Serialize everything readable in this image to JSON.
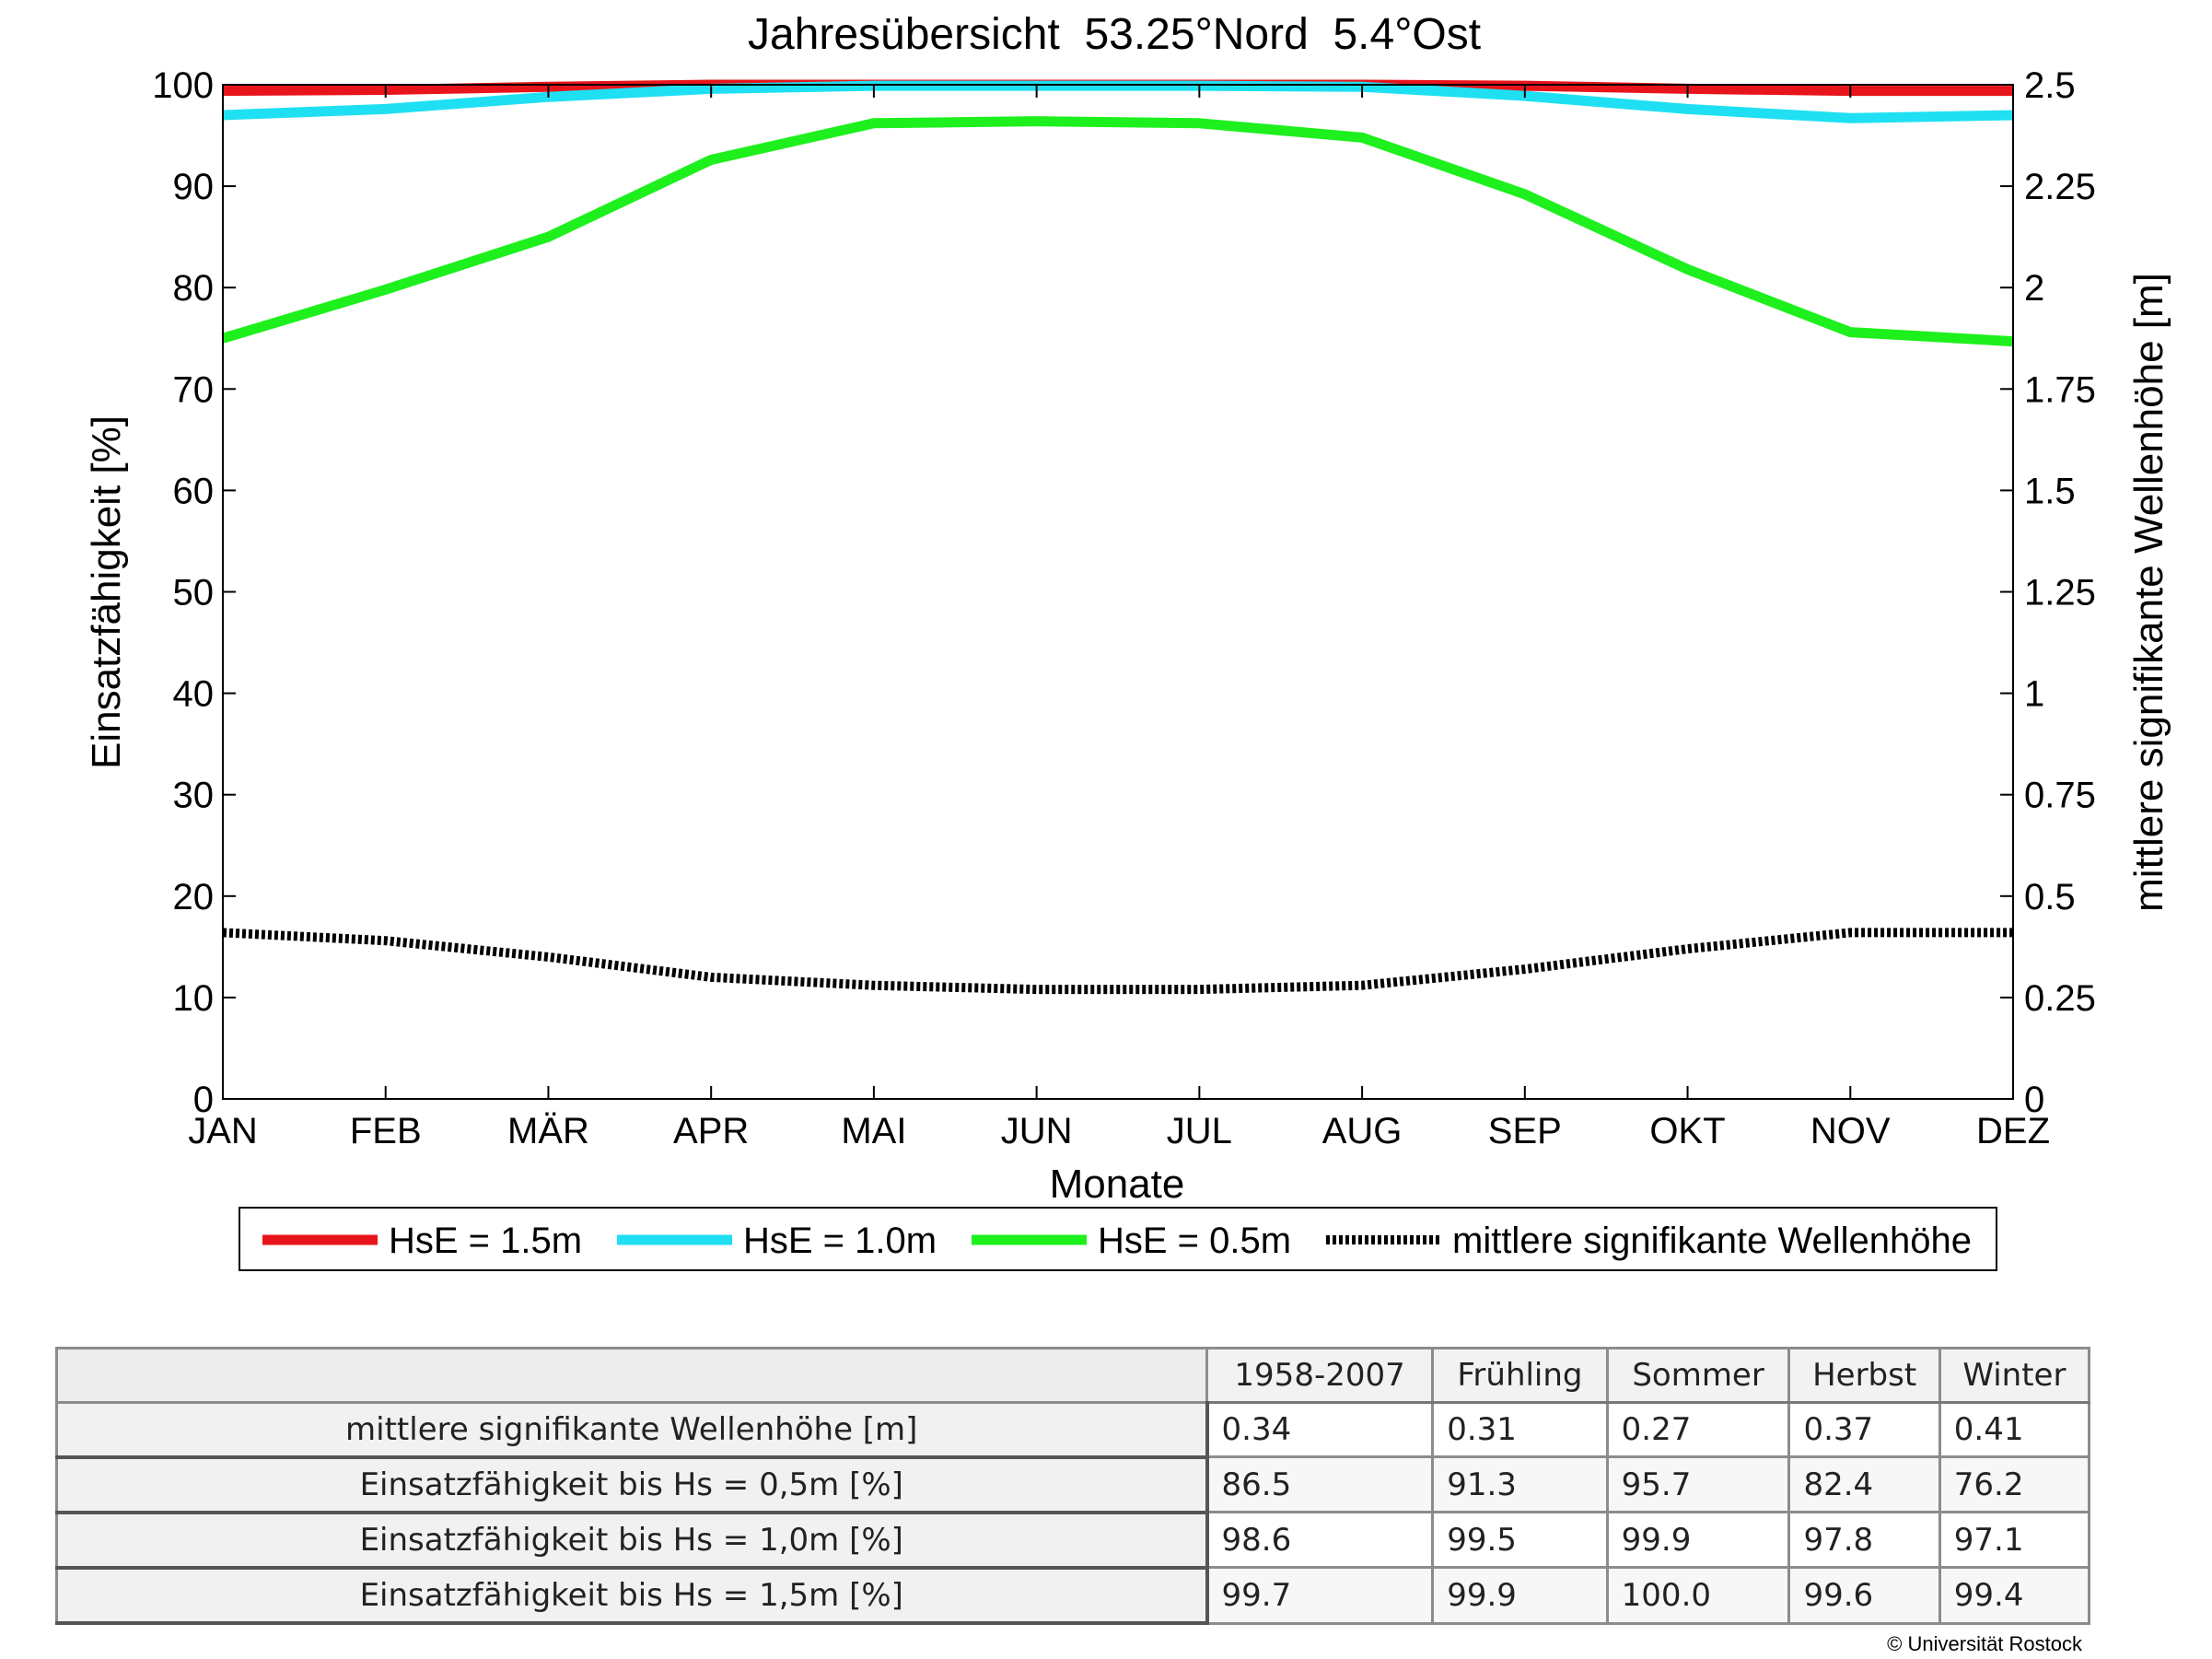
{
  "chart_data": {
    "type": "line",
    "title": "Jahresübersicht  53.25°Nord  5.4°Ost",
    "xlabel": "Monate",
    "ylabel": "Einsatzfähigkeit [%]",
    "y2label": "mittlere signifikante Wellenhöhe [m]",
    "categories": [
      "JAN",
      "FEB",
      "MÄR",
      "APR",
      "MAI",
      "JUN",
      "JUL",
      "AUG",
      "SEP",
      "OKT",
      "NOV",
      "DEZ"
    ],
    "ylim": [
      0,
      100
    ],
    "yticks": [
      "0",
      "10",
      "20",
      "30",
      "40",
      "50",
      "60",
      "70",
      "80",
      "90",
      "100"
    ],
    "y2lim": [
      0,
      2.5
    ],
    "y2ticks": [
      "0",
      "0.25",
      "0.5",
      "0.75",
      "1",
      "1.25",
      "1.5",
      "1.75",
      "2",
      "2.25",
      "2.5"
    ],
    "grid": false,
    "legend_position": "bottom",
    "series": [
      {
        "name": "HsE = 1.5m",
        "axis": "left",
        "color": "#e8141b",
        "style": "solid",
        "values": [
          99.4,
          99.5,
          99.8,
          100,
          100,
          100,
          100,
          100,
          99.9,
          99.6,
          99.4,
          99.4
        ]
      },
      {
        "name": "HsE = 1.0m",
        "axis": "left",
        "color": "#1fe0f2",
        "style": "solid",
        "values": [
          97.0,
          97.6,
          98.8,
          99.6,
          99.9,
          99.9,
          99.9,
          99.8,
          98.9,
          97.6,
          96.7,
          97.0
        ]
      },
      {
        "name": "HsE = 0.5m",
        "axis": "left",
        "color": "#1df01d",
        "style": "solid",
        "values": [
          75.0,
          79.8,
          85.0,
          92.6,
          96.2,
          96.4,
          96.2,
          94.8,
          89.2,
          81.8,
          75.6,
          74.7
        ]
      },
      {
        "name": "mittlere signifikante Wellenhöhe",
        "axis": "right",
        "color": "#000000",
        "style": "dotted",
        "values": [
          0.41,
          0.39,
          0.35,
          0.3,
          0.28,
          0.27,
          0.27,
          0.28,
          0.32,
          0.37,
          0.41,
          0.41
        ]
      }
    ]
  },
  "table": {
    "columns": [
      "1958-2007",
      "Frühling",
      "Sommer",
      "Herbst",
      "Winter"
    ],
    "rows": [
      {
        "label": "mittlere signifikante Wellenhöhe [m]",
        "values": [
          "0.34",
          "0.31",
          "0.27",
          "0.37",
          "0.41"
        ]
      },
      {
        "label": "Einsatzfähigkeit bis Hs = 0,5m [%]",
        "values": [
          "86.5",
          "91.3",
          "95.7",
          "82.4",
          "76.2"
        ]
      },
      {
        "label": "Einsatzfähigkeit bis Hs = 1,0m [%]",
        "values": [
          "98.6",
          "99.5",
          "99.9",
          "97.8",
          "97.1"
        ]
      },
      {
        "label": "Einsatzfähigkeit bis Hs = 1,5m [%]",
        "values": [
          "99.7",
          "99.9",
          "100.0",
          "99.6",
          "99.4"
        ]
      }
    ]
  },
  "copyright": "© Universität Rostock"
}
